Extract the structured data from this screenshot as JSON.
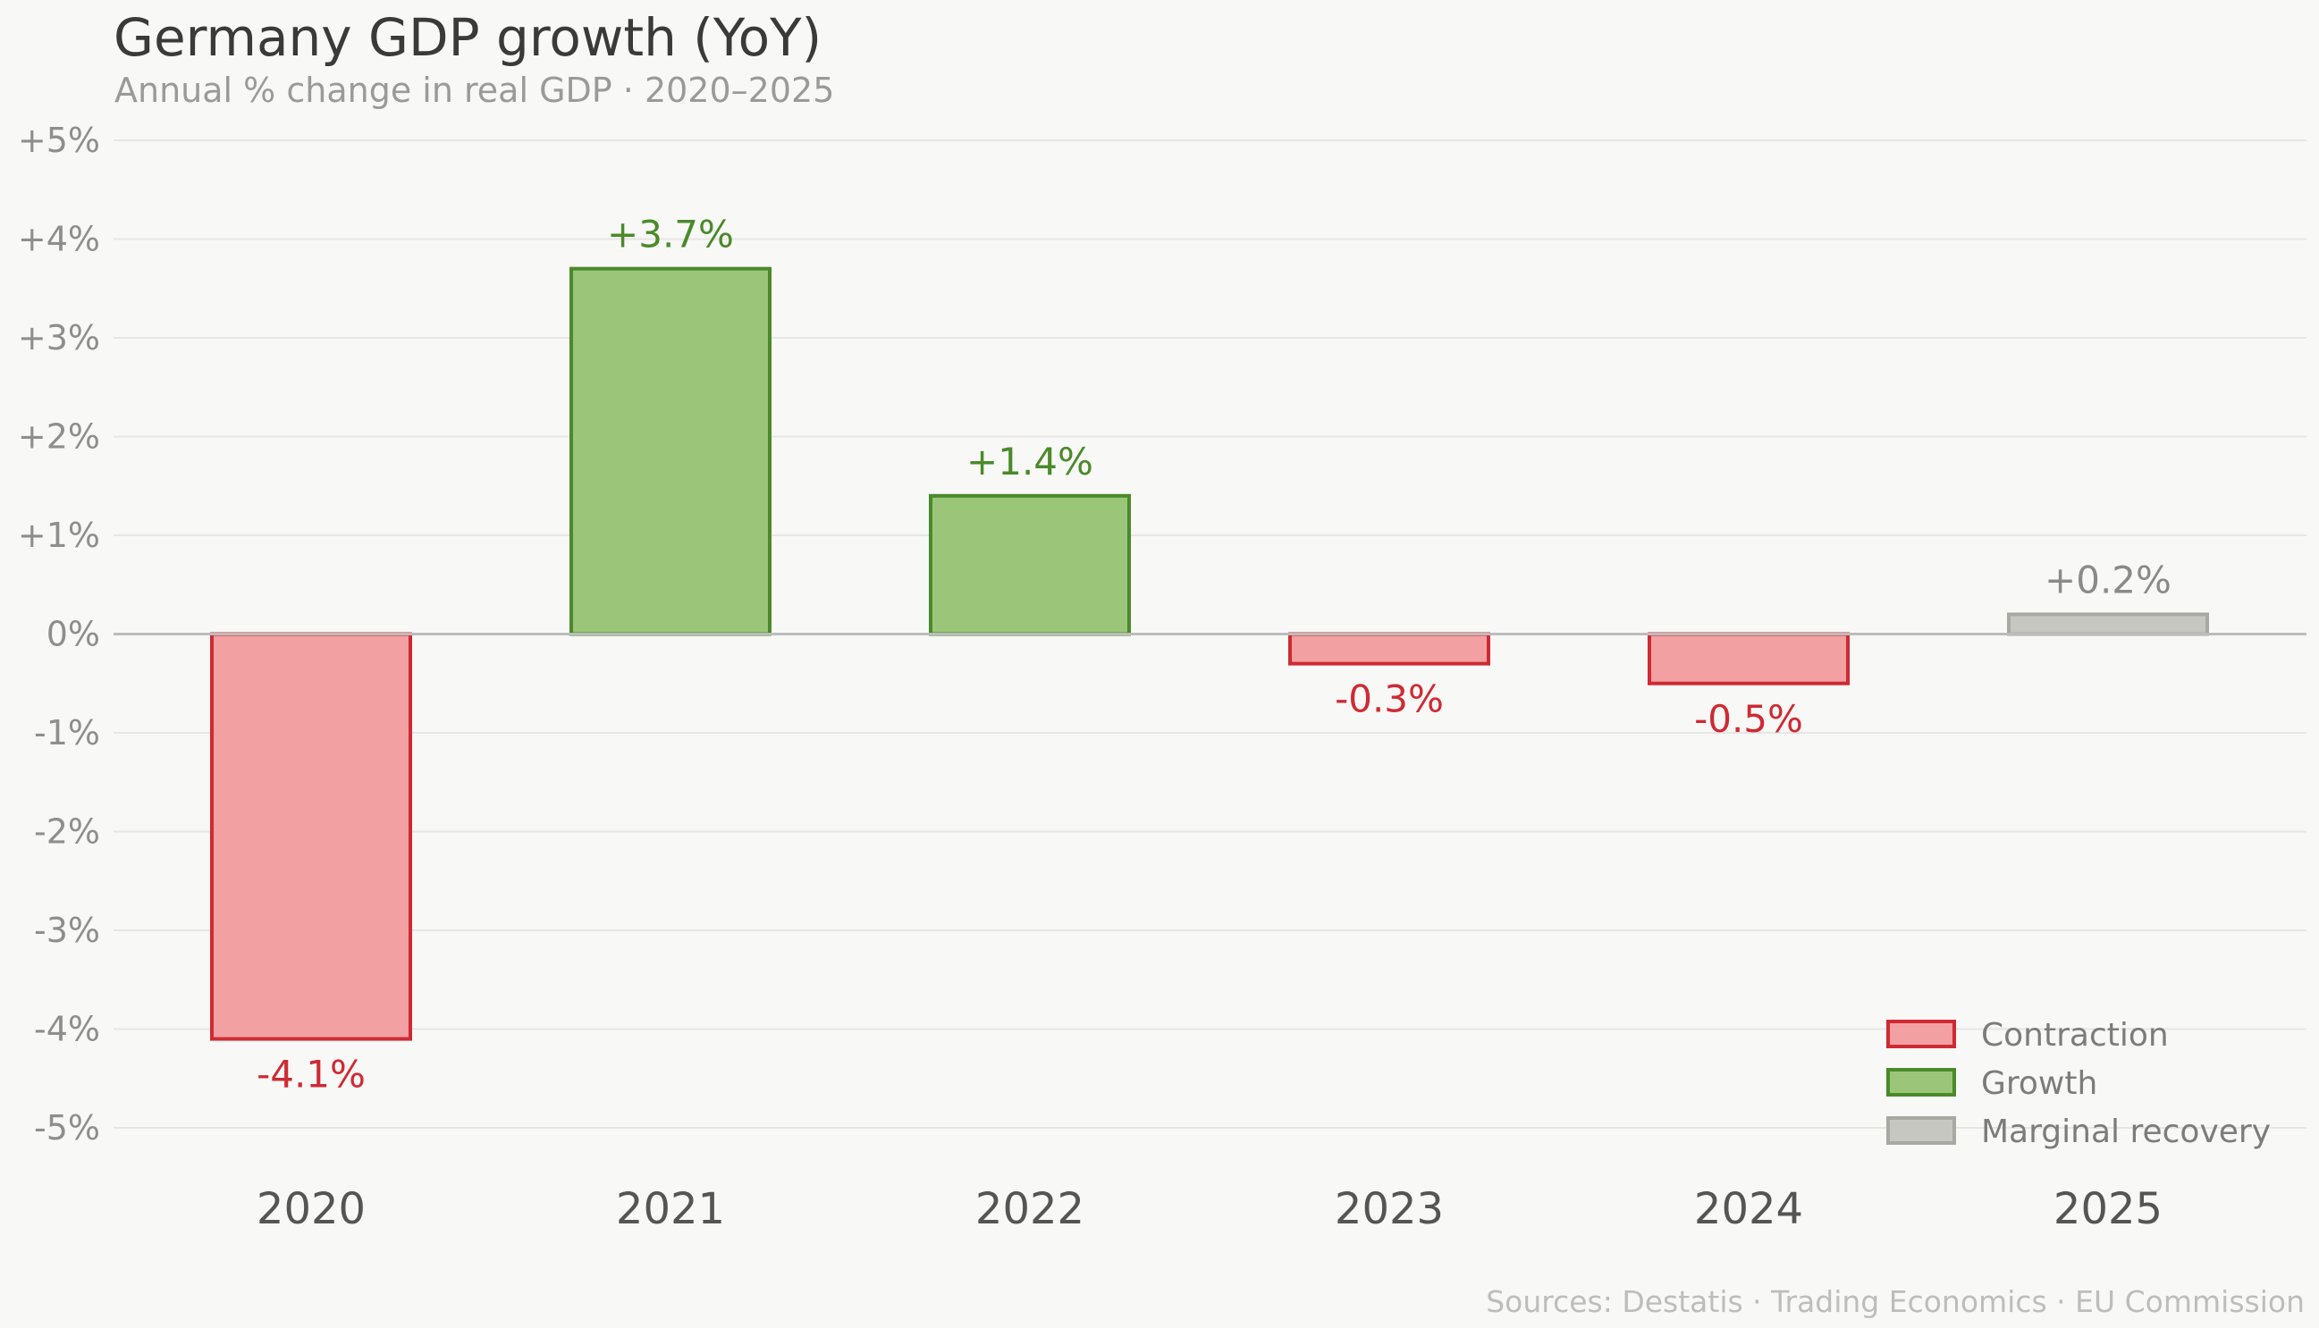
{
  "chart_data": {
    "type": "bar",
    "title": "Germany GDP growth (YoY)",
    "subtitle": "Annual % change in real GDP · 2020–2025",
    "xlabel": "",
    "ylabel": "",
    "ylim": [
      -5,
      5
    ],
    "yticks": [
      {
        "value": 5,
        "label": "+5%"
      },
      {
        "value": 4,
        "label": "+4%"
      },
      {
        "value": 3,
        "label": "+3%"
      },
      {
        "value": 2,
        "label": "+2%"
      },
      {
        "value": 1,
        "label": "+1%"
      },
      {
        "value": 0,
        "label": "0%"
      },
      {
        "value": -1,
        "label": "-1%"
      },
      {
        "value": -2,
        "label": "-2%"
      },
      {
        "value": -3,
        "label": "-3%"
      },
      {
        "value": -4,
        "label": "-4%"
      },
      {
        "value": -5,
        "label": "-5%"
      }
    ],
    "grid": true,
    "categories": [
      "2020",
      "2021",
      "2022",
      "2023",
      "2024",
      "2025"
    ],
    "values": [
      -4.1,
      3.7,
      1.4,
      -0.3,
      -0.5,
      0.2
    ],
    "data_labels": [
      "-4.1%",
      "+3.7%",
      "+1.4%",
      "-0.3%",
      "-0.5%",
      "+0.2%"
    ],
    "classes": [
      "contraction",
      "growth",
      "growth",
      "contraction",
      "contraction",
      "marginal"
    ],
    "legend": {
      "position": "bottom-right",
      "entries": [
        {
          "key": "contraction",
          "label": "Contraction",
          "fill": "#f2a0a2",
          "stroke": "#cf2a33",
          "text_color": "#cf2a33"
        },
        {
          "key": "growth",
          "label": "Growth",
          "fill": "#9bc67a",
          "stroke": "#4a8a2a",
          "text_color": "#4a8a2a"
        },
        {
          "key": "marginal",
          "label": "Marginal recovery",
          "fill": "#c7c7c2",
          "stroke": "#a9a9a3",
          "text_color": "#8a8a8a"
        }
      ]
    },
    "source": "Sources: Destatis · Trading Economics · EU Commission"
  }
}
